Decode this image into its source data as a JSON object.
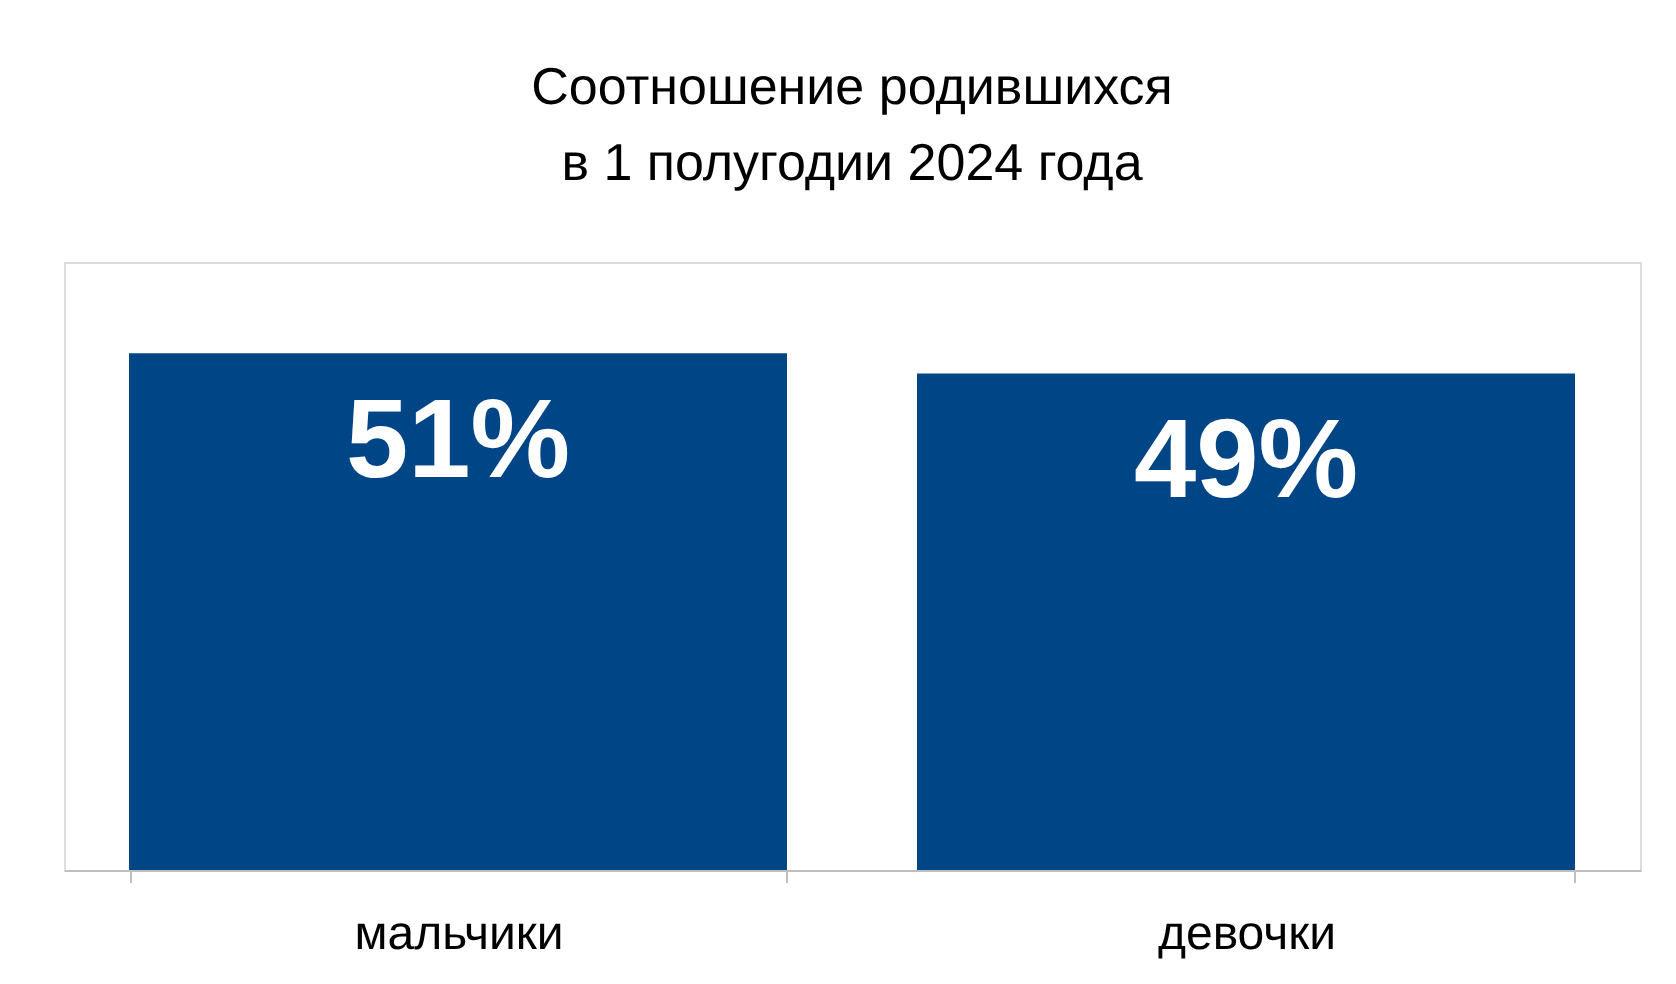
{
  "chart_data": {
    "type": "bar",
    "title": [
      "Соотношение родившихся",
      "в 1 полугодии 2024 года"
    ],
    "categories": [
      "мальчики",
      "девочки"
    ],
    "values": [
      51,
      49
    ],
    "color": "#004586",
    "ylim": [
      0,
      60
    ],
    "data_labels": true,
    "value_labels": [
      "51%",
      "49%"
    ],
    "tick_labels": "x",
    "grid": false
  }
}
